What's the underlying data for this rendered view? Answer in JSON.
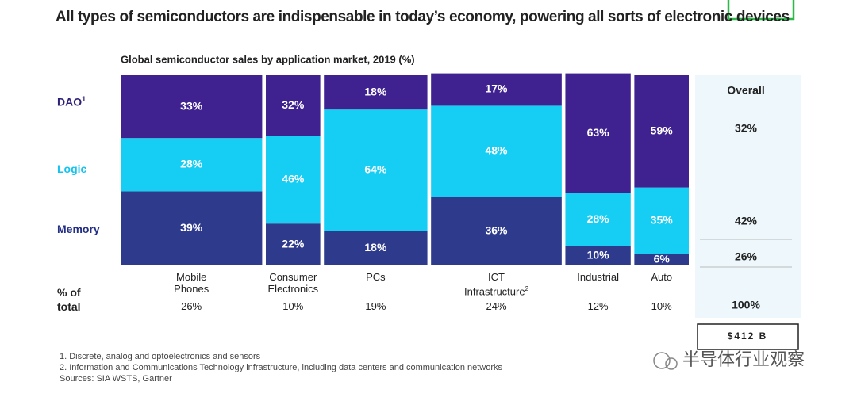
{
  "chart_data": {
    "type": "mekko",
    "title": "All types of semiconductors are indispensable in today’s economy, powering all sorts of electronic devices",
    "subtitle": "Global semiconductor sales by application market, 2019 (%)",
    "categories": [
      "Mobile Phones",
      "Consumer Electronics",
      "PCs",
      "ICT Infrastructure",
      "Industrial",
      "Auto"
    ],
    "category_notes": [
      null,
      null,
      null,
      "2",
      null,
      null
    ],
    "widths": [
      26,
      10,
      19,
      24,
      12,
      10
    ],
    "width_labels": [
      "26%",
      "10%",
      "19%",
      "24%",
      "12%",
      "10%"
    ],
    "width_axis_label": "% of total",
    "ylim": [
      0,
      100
    ],
    "series": [
      {
        "name": "DAO",
        "note": "1",
        "color": "#3f2290",
        "label_color": "#2b1f78",
        "values": [
          33,
          32,
          18,
          17,
          63,
          59
        ],
        "value_labels": [
          "33%",
          "32%",
          "18%",
          "17%",
          "63%",
          "59%"
        ]
      },
      {
        "name": "Logic",
        "color": "#16cdf3",
        "label_color": "#16c3ee",
        "values": [
          28,
          46,
          64,
          48,
          28,
          35
        ],
        "value_labels": [
          "28%",
          "46%",
          "64%",
          "48%",
          "28%",
          "35%"
        ]
      },
      {
        "name": "Memory",
        "color": "#2e3b8c",
        "label_color": "#242f86",
        "values": [
          39,
          22,
          18,
          36,
          10,
          6
        ],
        "value_labels": [
          "39%",
          "22%",
          "18%",
          "36%",
          "10%",
          "6%"
        ]
      }
    ],
    "overall": {
      "title": "Overall",
      "values": [
        32,
        42,
        26
      ],
      "value_labels": [
        "32%",
        "42%",
        "26%"
      ],
      "total": 100,
      "total_label": "100%",
      "market_size": "$412 B"
    },
    "footnotes": [
      "1. Discrete, analog and optoelectronics and sensors",
      "2. Information and Communications Technology infrastructure, including data centers and communication networks",
      "Sources: SIA WSTS, Gartner"
    ],
    "watermark": "半导体行业观察"
  }
}
